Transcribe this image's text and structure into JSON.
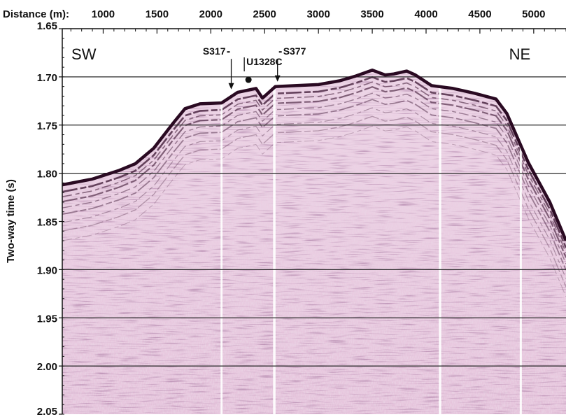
{
  "chart_data": {
    "type": "image",
    "xlabel": "Distance (m):",
    "ylabel": "Two-way time (s)",
    "x_ticks": [
      {
        "value": 1000,
        "label": "1000"
      },
      {
        "value": 1500,
        "label": "1500"
      },
      {
        "value": 2000,
        "label": "2000"
      },
      {
        "value": 2500,
        "label": "2500"
      },
      {
        "value": 3000,
        "label": "3000"
      },
      {
        "value": 3500,
        "label": "3500"
      },
      {
        "value": 4000,
        "label": "4000"
      },
      {
        "value": 4500,
        "label": "4500"
      },
      {
        "value": 5000,
        "label": "5000"
      }
    ],
    "y_ticks": [
      {
        "value": 1.65,
        "label": "1.65"
      },
      {
        "value": 1.7,
        "label": "1.70"
      },
      {
        "value": 1.75,
        "label": "1.75"
      },
      {
        "value": 1.8,
        "label": "1.80"
      },
      {
        "value": 1.85,
        "label": "1.85"
      },
      {
        "value": 1.9,
        "label": "1.90"
      },
      {
        "value": 1.95,
        "label": "1.95"
      },
      {
        "value": 2.0,
        "label": "2.00"
      },
      {
        "value": 2.05,
        "label": "2.05"
      }
    ],
    "xlim": [
      620,
      5300
    ],
    "ylim": [
      1.65,
      2.05
    ],
    "y_inverted": true,
    "grid_y": [
      1.7,
      1.75,
      1.8,
      1.9,
      1.95,
      2.0
    ],
    "region_labels": [
      {
        "text": "SW",
        "x": 820,
        "y": 1.682
      },
      {
        "text": "NE",
        "x": 4870,
        "y": 1.682
      }
    ],
    "site_markers": [
      {
        "label": "S317",
        "x": 2190,
        "y_label": 1.677,
        "y_tip": 1.713,
        "label_side": "left"
      },
      {
        "label": "U1328C",
        "x": 2350,
        "y_label": 1.692,
        "y_tip": 1.703,
        "label_side": "below"
      },
      {
        "label": "S377",
        "x": 2620,
        "y_label": 1.677,
        "y_tip": 1.705,
        "label_side": "right"
      }
    ],
    "seafloor_profile": {
      "x": [
        620,
        900,
        1150,
        1300,
        1470,
        1650,
        1760,
        1900,
        2100,
        2250,
        2420,
        2480,
        2600,
        2800,
        3000,
        3200,
        3350,
        3500,
        3620,
        3700,
        3820,
        3900,
        4050,
        4250,
        4450,
        4650,
        4750,
        4950,
        5150,
        5300
      ],
      "y": [
        1.812,
        1.806,
        1.797,
        1.79,
        1.774,
        1.748,
        1.733,
        1.728,
        1.727,
        1.716,
        1.712,
        1.722,
        1.71,
        1.709,
        1.708,
        1.704,
        1.699,
        1.693,
        1.698,
        1.697,
        1.694,
        1.698,
        1.709,
        1.712,
        1.717,
        1.723,
        1.738,
        1.789,
        1.83,
        1.87
      ]
    }
  }
}
